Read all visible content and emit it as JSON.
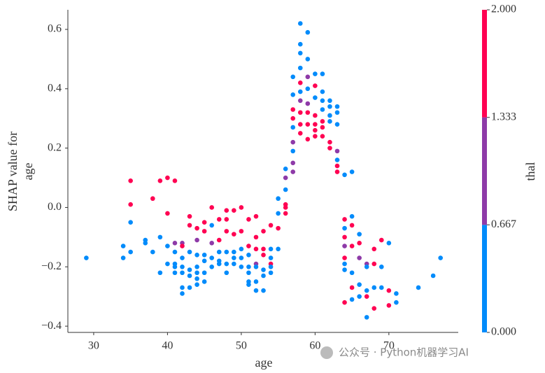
{
  "chart_data": {
    "type": "scatter",
    "xlabel": "age",
    "ylabel": [
      "SHAP value for",
      "age"
    ],
    "xlim": [
      26.5,
      79.4
    ],
    "ylim": [
      -0.421,
      0.666
    ],
    "xticks": [
      30,
      40,
      50,
      60,
      70
    ],
    "yticks": [
      {
        "value": -0.4,
        "label": "−0.4"
      },
      {
        "value": -0.2,
        "label": "−0.2"
      },
      {
        "value": 0,
        "label": "0.0"
      },
      0.2,
      0.4,
      0.6
    ],
    "colorbar": {
      "label": "thal",
      "lim": [
        0,
        2
      ],
      "colors": [
        "#008bfb",
        "#8e3aa8",
        "#ff0052"
      ],
      "ticks": [
        {
          "value": 0,
          "label": "0.000"
        },
        {
          "value": 0.667,
          "label": "0.667"
        },
        {
          "value": 1.333,
          "label": "1.333"
        },
        {
          "value": 2,
          "label": "2.000"
        }
      ]
    },
    "x": [
      29,
      34,
      34,
      35,
      35,
      35,
      35,
      37,
      37,
      38,
      38,
      39,
      39,
      39,
      40,
      40,
      40,
      40,
      41,
      41,
      41,
      41,
      41,
      41,
      42,
      42,
      42,
      42,
      42,
      42,
      42,
      43,
      43,
      43,
      43,
      43,
      43,
      44,
      44,
      44,
      44,
      44,
      44,
      44,
      45,
      45,
      45,
      45,
      45,
      45,
      46,
      46,
      46,
      46,
      46,
      47,
      47,
      47,
      47,
      47,
      48,
      48,
      48,
      48,
      48,
      48,
      49,
      49,
      49,
      49,
      49,
      50,
      50,
      50,
      50,
      50,
      51,
      51,
      51,
      51,
      51,
      51,
      51,
      52,
      52,
      52,
      52,
      52,
      52,
      52,
      53,
      53,
      53,
      53,
      53,
      53,
      54,
      54,
      54,
      54,
      54,
      54,
      55,
      55,
      55,
      55,
      56,
      56,
      56,
      56,
      56,
      56,
      57,
      57,
      57,
      57,
      57,
      57,
      57,
      57,
      57,
      58,
      58,
      58,
      58,
      58,
      58,
      58,
      58,
      58,
      58,
      59,
      59,
      59,
      59,
      59,
      59,
      59,
      59,
      60,
      60,
      60,
      60,
      60,
      60,
      60,
      61,
      61,
      61,
      61,
      61,
      61,
      61,
      62,
      62,
      62,
      62,
      62,
      62,
      63,
      63,
      63,
      63,
      63,
      63,
      63,
      64,
      64,
      64,
      64,
      64,
      64,
      64,
      64,
      64,
      65,
      65,
      65,
      65,
      65,
      65,
      65,
      66,
      66,
      66,
      66,
      66,
      67,
      67,
      67,
      67,
      67,
      68,
      68,
      68,
      68,
      69,
      69,
      69,
      70,
      70,
      70,
      71,
      71,
      74,
      76,
      77
    ],
    "values": [
      -0.17,
      -0.13,
      -0.17,
      0.09,
      0.01,
      -0.05,
      -0.15,
      -0.11,
      -0.12,
      0.03,
      -0.15,
      0.09,
      -0.1,
      -0.22,
      0.1,
      -0.02,
      -0.13,
      -0.19,
      0.09,
      -0.12,
      -0.15,
      -0.19,
      -0.2,
      -0.22,
      -0.12,
      -0.13,
      -0.17,
      -0.2,
      -0.22,
      -0.27,
      -0.29,
      -0.03,
      -0.06,
      -0.15,
      -0.21,
      -0.23,
      -0.27,
      -0.07,
      -0.11,
      -0.16,
      -0.2,
      -0.22,
      -0.24,
      -0.26,
      -0.05,
      -0.08,
      -0.16,
      -0.18,
      -0.22,
      -0.25,
      0.0,
      -0.06,
      -0.12,
      -0.17,
      -0.2,
      -0.04,
      -0.11,
      -0.15,
      -0.18,
      -0.19,
      -0.01,
      -0.04,
      -0.08,
      -0.15,
      -0.19,
      -0.22,
      -0.01,
      -0.09,
      -0.15,
      -0.17,
      -0.19,
      0.0,
      -0.08,
      -0.14,
      -0.17,
      -0.2,
      -0.04,
      -0.13,
      -0.16,
      -0.2,
      -0.22,
      -0.25,
      -0.26,
      -0.03,
      -0.1,
      -0.14,
      -0.19,
      -0.2,
      -0.25,
      -0.28,
      -0.08,
      -0.14,
      -0.16,
      -0.21,
      -0.23,
      -0.28,
      -0.06,
      -0.14,
      -0.17,
      -0.19,
      -0.2,
      -0.22,
      0.03,
      -0.02,
      -0.07,
      -0.14,
      0.13,
      0.1,
      0.06,
      0.01,
      0.0,
      -0.02,
      0.44,
      0.38,
      0.33,
      0.3,
      0.27,
      0.22,
      0.19,
      0.15,
      0.12,
      0.62,
      0.55,
      0.52,
      0.47,
      0.42,
      0.39,
      0.36,
      0.32,
      0.28,
      0.25,
      0.59,
      0.5,
      0.44,
      0.4,
      0.35,
      0.32,
      0.28,
      0.23,
      0.45,
      0.41,
      0.37,
      0.31,
      0.28,
      0.26,
      0.24,
      0.45,
      0.39,
      0.36,
      0.33,
      0.29,
      0.27,
      0.24,
      0.36,
      0.34,
      0.31,
      0.29,
      0.22,
      0.2,
      0.34,
      0.32,
      0.28,
      0.19,
      0.16,
      0.14,
      0.12,
      0.11,
      -0.04,
      -0.07,
      -0.1,
      -0.13,
      -0.17,
      -0.19,
      -0.21,
      -0.32,
      0.12,
      -0.03,
      -0.06,
      -0.13,
      -0.22,
      -0.27,
      -0.31,
      -0.09,
      -0.12,
      -0.17,
      -0.26,
      -0.3,
      -0.19,
      -0.2,
      -0.28,
      -0.37,
      -0.3,
      -0.14,
      -0.19,
      -0.27,
      -0.34,
      -0.11,
      -0.2,
      -0.27,
      -0.12,
      -0.28,
      -0.33,
      -0.29,
      -0.32,
      -0.27,
      -0.23,
      -0.17
    ],
    "color_values": [
      0,
      0,
      0,
      2,
      2,
      0,
      0,
      0,
      0,
      2,
      0,
      2,
      0,
      0,
      2,
      2,
      0,
      0,
      2,
      1,
      0,
      0,
      0,
      0,
      1,
      2,
      0,
      0,
      0,
      0,
      0,
      2,
      2,
      0,
      0,
      0,
      0,
      2,
      1,
      0,
      0,
      0,
      0,
      0,
      2,
      2,
      0,
      0,
      0,
      0,
      2,
      0,
      1,
      0,
      0,
      2,
      2,
      0,
      0,
      0,
      2,
      2,
      2,
      0,
      0,
      0,
      2,
      2,
      0,
      0,
      0,
      2,
      2,
      0,
      0,
      0,
      2,
      2,
      0,
      0,
      0,
      0,
      0,
      2,
      2,
      2,
      1,
      0,
      0,
      0,
      2,
      2,
      2,
      0,
      0,
      0,
      2,
      0,
      0,
      2,
      0,
      0,
      0,
      0,
      2,
      0,
      0,
      1,
      0,
      2,
      2,
      2,
      0,
      0,
      2,
      2,
      0,
      1,
      0,
      1,
      1,
      0,
      0,
      0,
      0,
      2,
      0,
      1,
      2,
      2,
      2,
      0,
      0,
      1,
      0,
      1,
      2,
      2,
      2,
      0,
      2,
      0,
      2,
      2,
      2,
      2,
      0,
      0,
      0,
      0,
      2,
      2,
      2,
      0,
      0,
      0,
      0,
      2,
      2,
      0,
      0,
      0,
      1,
      0,
      2,
      2,
      0,
      2,
      0,
      2,
      1,
      2,
      0,
      0,
      2,
      0,
      0,
      2,
      2,
      0,
      2,
      0,
      0,
      2,
      1,
      0,
      0,
      1,
      0,
      0,
      0,
      2,
      2,
      2,
      0,
      2,
      2,
      0,
      0,
      0,
      2,
      2,
      0,
      0,
      0,
      0,
      0
    ]
  },
  "watermark": "公众号 · Python机器学习AI"
}
